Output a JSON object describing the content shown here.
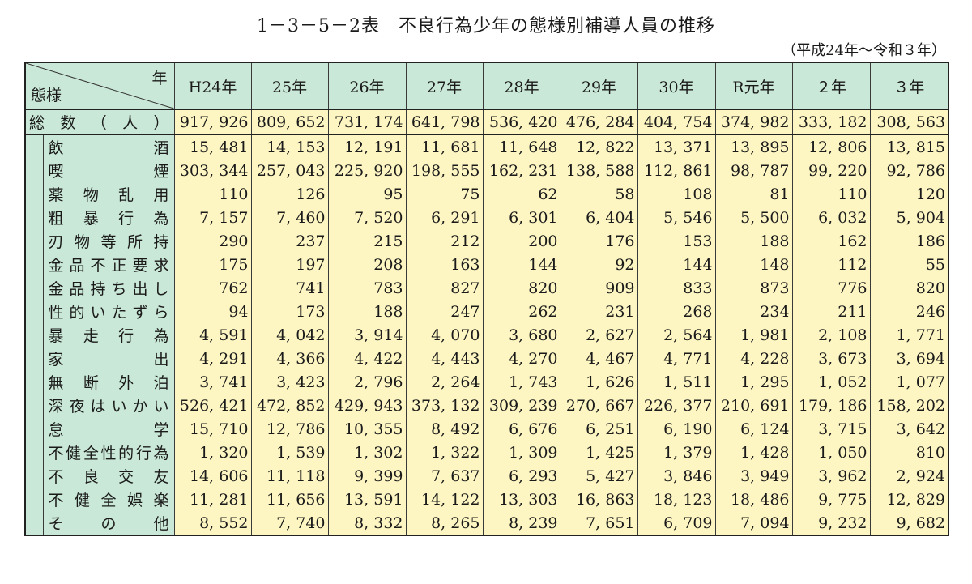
{
  "title": "1－3－5－2表　不良行為少年の態様別補導人員の推移",
  "subtitle": "（平成24年～令和３年）",
  "header": {
    "corner_year": "年",
    "corner_type": "態様",
    "years": [
      "H24年",
      "25年",
      "26年",
      "27年",
      "28年",
      "29年",
      "30年",
      "R元年",
      "２年",
      "３年"
    ]
  },
  "total_row": {
    "label": "総数（人）",
    "values": [
      "917, 926",
      "809, 652",
      "731, 174",
      "641, 798",
      "536, 420",
      "476, 284",
      "404, 754",
      "374, 982",
      "333, 182",
      "308, 563"
    ]
  },
  "rows": [
    {
      "label": "飲酒",
      "values": [
        "15, 481",
        "14, 153",
        "12, 191",
        "11, 681",
        "11, 648",
        "12, 822",
        "13, 371",
        "13, 895",
        "12, 806",
        "13, 815"
      ]
    },
    {
      "label": "喫煙",
      "values": [
        "303, 344",
        "257, 043",
        "225, 920",
        "198, 555",
        "162, 231",
        "138, 588",
        "112, 861",
        "98, 787",
        "99, 220",
        "92, 786"
      ]
    },
    {
      "label": "薬物乱用",
      "values": [
        "110",
        "126",
        "95",
        "75",
        "62",
        "58",
        "108",
        "81",
        "110",
        "120"
      ]
    },
    {
      "label": "粗暴行為",
      "values": [
        "7, 157",
        "7, 460",
        "7, 520",
        "6, 291",
        "6, 301",
        "6, 404",
        "5, 546",
        "5, 500",
        "6, 032",
        "5, 904"
      ]
    },
    {
      "label": "刃物等所持",
      "values": [
        "290",
        "237",
        "215",
        "212",
        "200",
        "176",
        "153",
        "188",
        "162",
        "186"
      ]
    },
    {
      "label": "金品不正要求",
      "values": [
        "175",
        "197",
        "208",
        "163",
        "144",
        "92",
        "144",
        "148",
        "112",
        "55"
      ]
    },
    {
      "label": "金品持ち出し",
      "values": [
        "762",
        "741",
        "783",
        "827",
        "820",
        "909",
        "833",
        "873",
        "776",
        "820"
      ]
    },
    {
      "label": "性的いたずら",
      "values": [
        "94",
        "173",
        "188",
        "247",
        "262",
        "231",
        "268",
        "234",
        "211",
        "246"
      ]
    },
    {
      "label": "暴走行為",
      "values": [
        "4, 591",
        "4, 042",
        "3, 914",
        "4, 070",
        "3, 680",
        "2, 627",
        "2, 564",
        "1, 981",
        "2, 108",
        "1, 771"
      ]
    },
    {
      "label": "家出",
      "values": [
        "4, 291",
        "4, 366",
        "4, 422",
        "4, 443",
        "4, 270",
        "4, 467",
        "4, 771",
        "4, 228",
        "3, 673",
        "3, 694"
      ]
    },
    {
      "label": "無断外泊",
      "values": [
        "3, 741",
        "3, 423",
        "2, 796",
        "2, 264",
        "1, 743",
        "1, 626",
        "1, 511",
        "1, 295",
        "1, 052",
        "1, 077"
      ]
    },
    {
      "label": "深夜はいかい",
      "values": [
        "526, 421",
        "472, 852",
        "429, 943",
        "373, 132",
        "309, 239",
        "270, 667",
        "226, 377",
        "210, 691",
        "179, 186",
        "158, 202"
      ]
    },
    {
      "label": "怠学",
      "values": [
        "15, 710",
        "12, 786",
        "10, 355",
        "8, 492",
        "6, 676",
        "6, 251",
        "6, 190",
        "6, 124",
        "3, 715",
        "3, 642"
      ]
    },
    {
      "label": "不健全性的行為",
      "values": [
        "1, 320",
        "1, 539",
        "1, 302",
        "1, 322",
        "1, 309",
        "1, 425",
        "1, 379",
        "1, 428",
        "1, 050",
        "810"
      ]
    },
    {
      "label": "不良交友",
      "values": [
        "14, 606",
        "11, 118",
        "9, 399",
        "7, 637",
        "6, 293",
        "5, 427",
        "3, 846",
        "3, 949",
        "3, 962",
        "2, 924"
      ]
    },
    {
      "label": "不健全娯楽",
      "values": [
        "11, 281",
        "11, 656",
        "13, 591",
        "14, 122",
        "13, 303",
        "16, 863",
        "18, 123",
        "18, 486",
        "9, 775",
        "12, 829"
      ]
    },
    {
      "label": "その他",
      "values": [
        "8, 552",
        "7, 740",
        "8, 332",
        "8, 265",
        "8, 239",
        "7, 651",
        "6, 709",
        "7, 094",
        "9, 232",
        "9, 682"
      ]
    }
  ]
}
